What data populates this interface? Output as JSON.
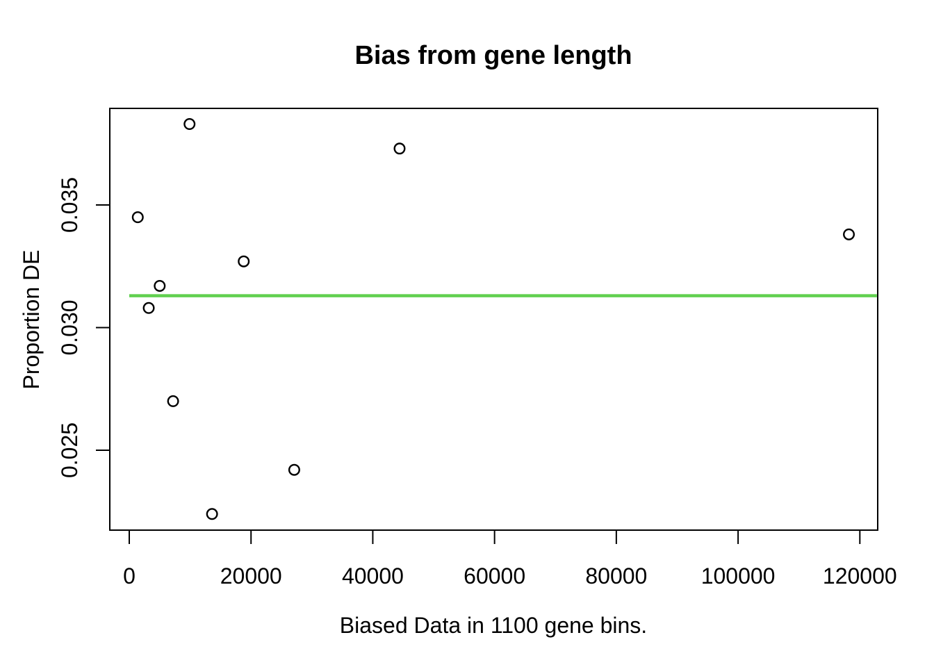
{
  "chart_data": {
    "type": "scatter",
    "title": "Bias from gene length",
    "xlabel": "Biased Data in 1100 gene bins.",
    "ylabel": "Proportion DE",
    "x_ticks": [
      0,
      20000,
      40000,
      60000,
      80000,
      100000,
      120000
    ],
    "x_tick_labels": [
      "0",
      "20000",
      "40000",
      "60000",
      "80000",
      "100000",
      "120000"
    ],
    "y_ticks": [
      0.035,
      0.03,
      0.025
    ],
    "y_tick_labels": [
      "0.035",
      "0.030",
      "0.025"
    ],
    "xlim": [
      -3200,
      122900
    ],
    "ylim": [
      0.0217,
      0.0389
    ],
    "grid": false,
    "legend": "none",
    "background": "#FFFFFF",
    "frame_color": "#000000",
    "point_style": {
      "marker": "open-circle",
      "color": "#000000"
    },
    "points": [
      {
        "x": 1400,
        "y": 0.0345
      },
      {
        "x": 3200,
        "y": 0.0308
      },
      {
        "x": 5000,
        "y": 0.0317
      },
      {
        "x": 7200,
        "y": 0.027
      },
      {
        "x": 9900,
        "y": 0.0383
      },
      {
        "x": 13600,
        "y": 0.0224
      },
      {
        "x": 18800,
        "y": 0.0327
      },
      {
        "x": 27100,
        "y": 0.0242
      },
      {
        "x": 44400,
        "y": 0.0373
      },
      {
        "x": 118200,
        "y": 0.0338
      }
    ],
    "hline": {
      "y": 0.0313,
      "color": "#61D04F",
      "x_start": 0,
      "x_end": 122800
    }
  }
}
